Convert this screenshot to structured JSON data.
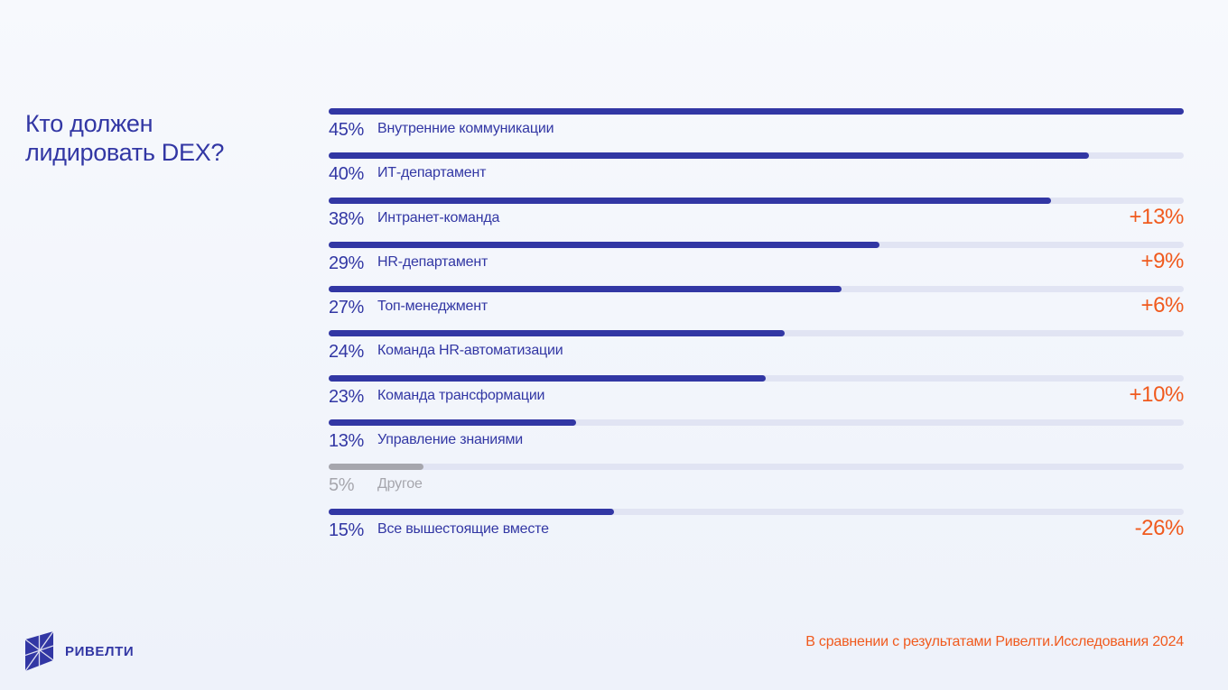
{
  "slide": {
    "title_lines": [
      "Кто должен",
      "лидировать DEX?"
    ],
    "brand": "РИВЕЛТИ",
    "footnote": "В сравнении с результатами Ривелти.Исследования 2024",
    "colors": {
      "primary": "#3237a4",
      "accent": "#f05a1e",
      "track": "#e1e4f3",
      "muted": "#a6a6ad",
      "background": "#f1f4fb"
    }
  },
  "chart_data": {
    "type": "bar",
    "orientation": "horizontal",
    "title": "Кто должен лидировать DEX?",
    "xlim": [
      0,
      45
    ],
    "unit": "%",
    "categories": [
      "Внутренние коммуникации",
      "ИТ-департамент",
      "Интранет-команда",
      "HR-департамент",
      "Топ-менеджмент",
      "Команда HR-автоматизации",
      "Команда трансформации",
      "Управление знаниями",
      "Другое",
      "Все вышестоящие вместе"
    ],
    "values": [
      45,
      40,
      38,
      29,
      27,
      24,
      23,
      13,
      5,
      15
    ],
    "value_labels": [
      "45%",
      "40%",
      "38%",
      "29%",
      "27%",
      "24%",
      "23%",
      "13%",
      "5%",
      "15%"
    ],
    "changes": [
      "",
      "",
      "+13%",
      "+9%",
      "+6%",
      "",
      "+10%",
      "",
      "",
      "-26%"
    ],
    "muted": [
      false,
      false,
      false,
      false,
      false,
      false,
      false,
      false,
      true,
      false
    ],
    "grid": false,
    "legend": "none"
  }
}
